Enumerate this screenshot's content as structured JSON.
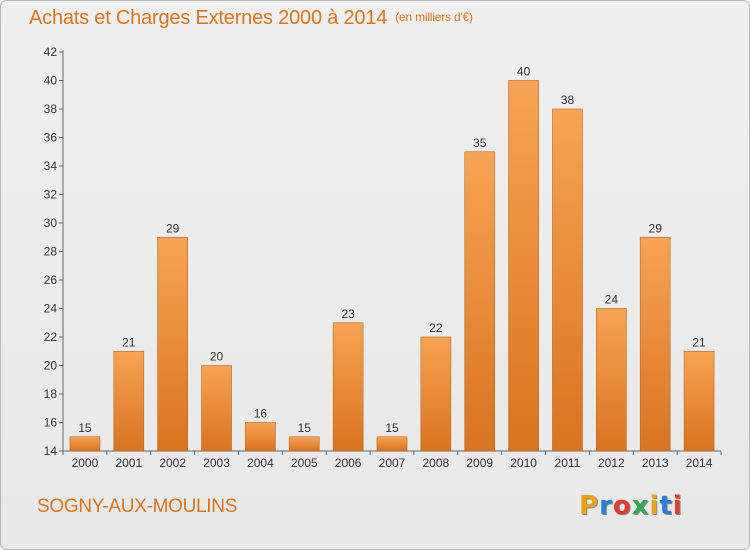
{
  "header": {
    "title": "Achats et Charges Externes 2000 à 2014",
    "subtitle": "(en milliers d'€)"
  },
  "footer": {
    "town": "SOGNY-AUX-MOULINS",
    "logo": [
      "P",
      "r",
      "o",
      "x",
      "i",
      "t",
      "i"
    ],
    "logo_colors": [
      "#e8a317",
      "#2a7fd4",
      "#e63a2e",
      "#2fa84f",
      "#e8a317",
      "#2a7fd4",
      "#e63a2e"
    ]
  },
  "colors": {
    "bar_top": "#f6a454",
    "bar_bottom": "#d9731f",
    "bar_edge": "#c0651a",
    "accent": "#d9761a"
  },
  "chart_data": {
    "type": "bar",
    "categories": [
      "2000",
      "2001",
      "2002",
      "2003",
      "2004",
      "2005",
      "2006",
      "2007",
      "2008",
      "2009",
      "2010",
      "2011",
      "2012",
      "2013",
      "2014"
    ],
    "values": [
      15,
      21,
      29,
      20,
      16,
      15,
      23,
      15,
      22,
      35,
      40,
      38,
      24,
      29,
      21
    ],
    "ylim": [
      14,
      42
    ],
    "yticks": [
      14,
      16,
      18,
      20,
      22,
      24,
      26,
      28,
      30,
      32,
      34,
      36,
      38,
      40,
      42
    ],
    "grid": false,
    "legend": "none"
  }
}
